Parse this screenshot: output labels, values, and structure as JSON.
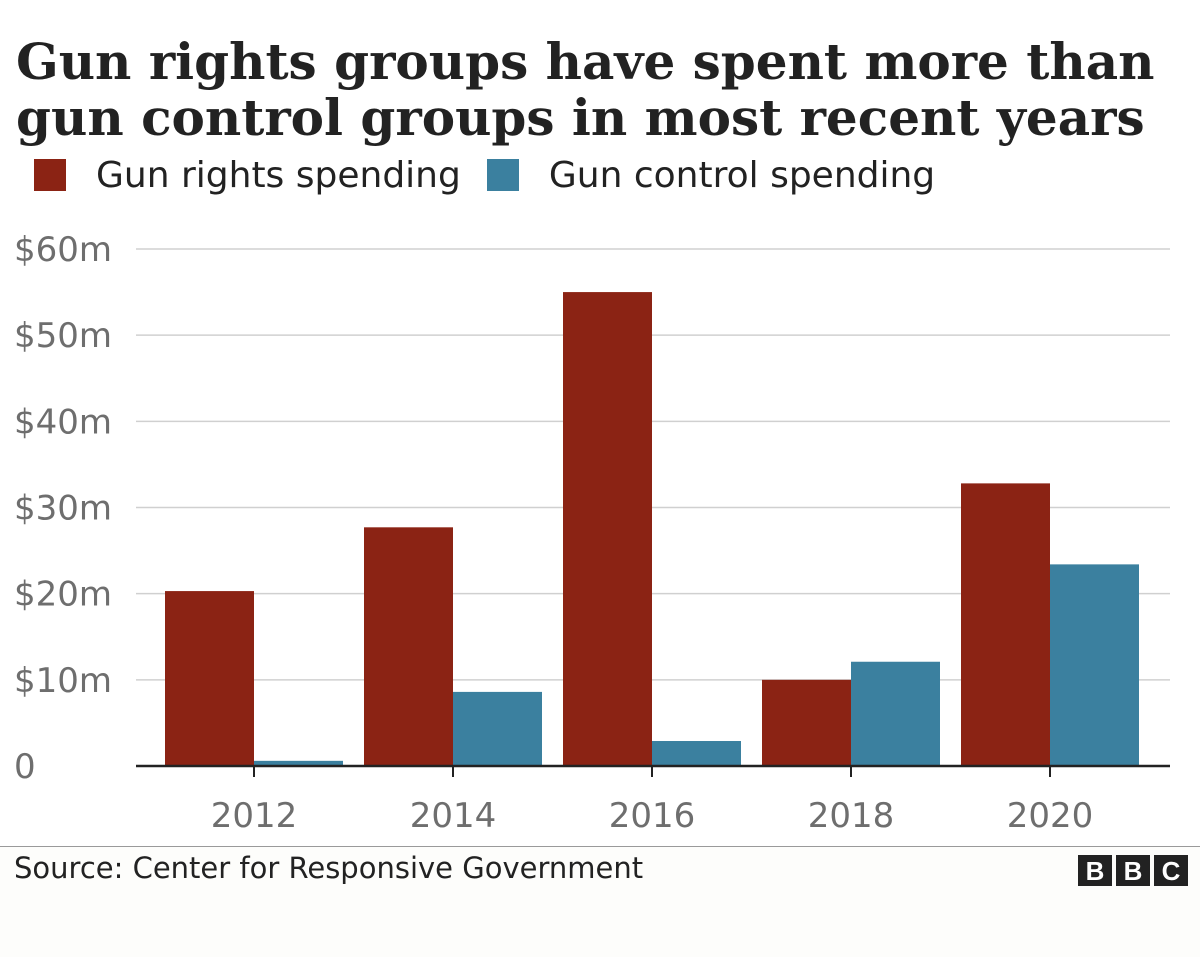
{
  "chart_data": {
    "type": "bar",
    "title": "Gun rights groups have spent more than gun control groups in most recent years",
    "xlabel": "",
    "ylabel": "",
    "categories": [
      "2012",
      "2014",
      "2016",
      "2018",
      "2020"
    ],
    "series": [
      {
        "name": "Gun rights spending",
        "color": "#8b2314",
        "values": [
          20.3,
          27.7,
          55.0,
          10.0,
          32.8
        ]
      },
      {
        "name": "Gun control spending",
        "color": "#3b809f",
        "values": [
          0.6,
          8.6,
          2.9,
          12.1,
          23.4
        ]
      }
    ],
    "ylim": [
      0,
      60
    ],
    "yticks": [
      0,
      10,
      20,
      30,
      40,
      50,
      60
    ],
    "ytick_labels": [
      "0",
      "$10m",
      "$20m",
      "$30m",
      "$40m",
      "$50m",
      "$60m"
    ],
    "grid": true,
    "legend_position": "top-left"
  },
  "footer": {
    "source": "Source: Center for Responsive Government",
    "logo_letters": [
      "B",
      "B",
      "C"
    ]
  }
}
